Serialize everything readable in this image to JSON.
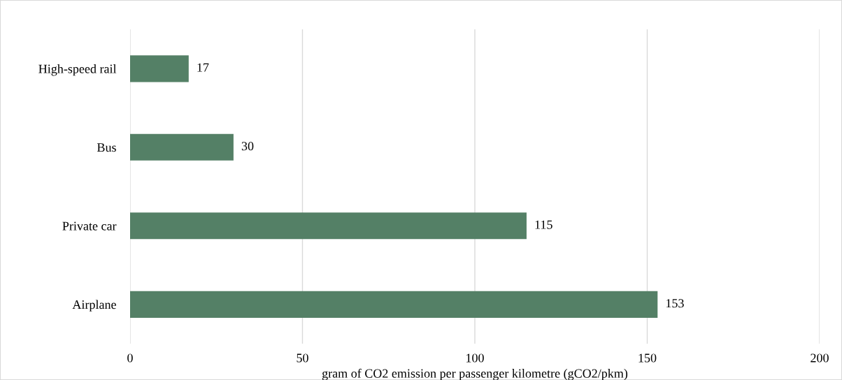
{
  "chart_data": {
    "type": "bar",
    "orientation": "horizontal",
    "categories": [
      "High-speed rail",
      "Bus",
      "Private car",
      "Airplane"
    ],
    "values": [
      17,
      30,
      115,
      153
    ],
    "color": "#548066",
    "xlabel": "gram of CO2 emission per passenger kilometre (gCO2/pkm)",
    "xlim": [
      0,
      200
    ],
    "xticks": [
      0,
      50,
      100,
      150,
      200
    ],
    "grid": "x",
    "data_labels": true
  }
}
